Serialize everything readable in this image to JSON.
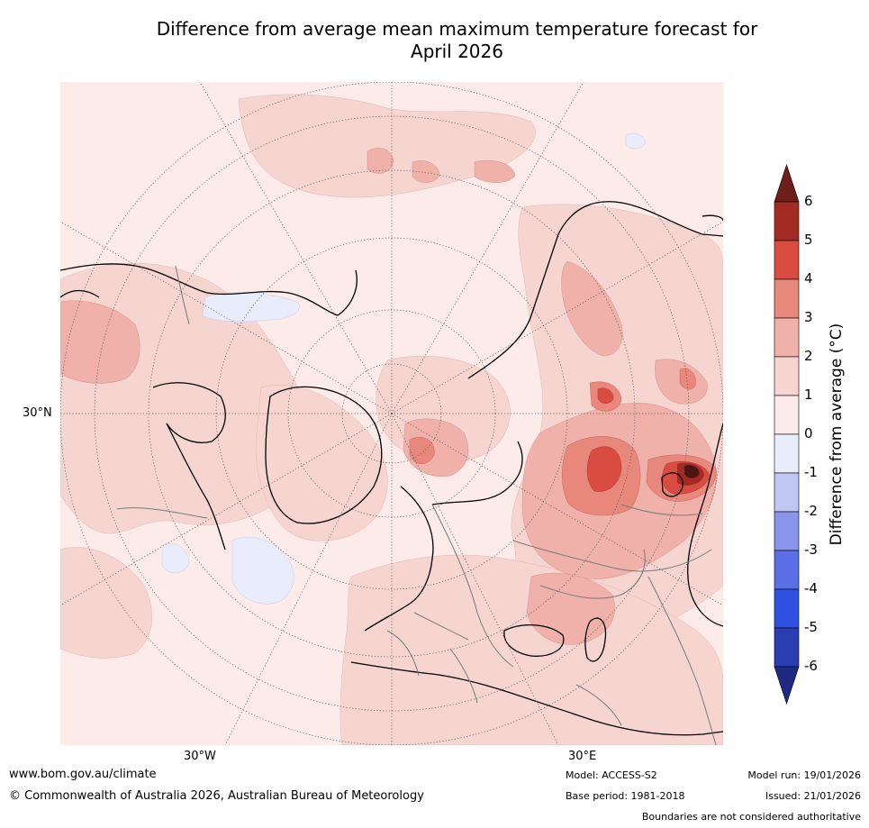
{
  "title": {
    "line1": "Difference from average mean maximum temperature forecast for",
    "line2": "April 2026"
  },
  "axis_labels": {
    "lat_30n": "30°N",
    "lon_30w": "30°W",
    "lon_30e": "30°E"
  },
  "colorbar": {
    "label": "Difference from average (°C)",
    "ticks": [
      "6",
      "5",
      "4",
      "3",
      "2",
      "1",
      "0",
      "-1",
      "-2",
      "-3",
      "-4",
      "-5",
      "-6"
    ],
    "bin_colors": [
      "#a42b24",
      "#d84c42",
      "#e8877c",
      "#efb1aa",
      "#f6d5d1",
      "#fcebe8",
      "#e9ecfb",
      "#c0c7f1",
      "#8895ea",
      "#5a6ee6",
      "#3050e2",
      "#2a3db2"
    ],
    "top_extend_color": "#6e1f1a",
    "bottom_extend_color": "#1f2a82"
  },
  "footer": {
    "website": "www.bom.gov.au/climate",
    "copyright": "© Commonwealth of Australia 2026, Australian Bureau of Meteorology",
    "model": "Model: ACCESS-S2",
    "base_period": "Base period: 1981-2018",
    "model_run": "Model run: 19/01/2026",
    "issued": "Issued: 21/01/2026",
    "disclaimer": "Boundaries are not considered authoritative"
  },
  "legend_anomaly_colors": {
    "background": "#fcebe8",
    "light_warm": "#f6d5d1",
    "mid_warm": "#efb1aa",
    "warm": "#e8877c",
    "hot": "#d84c42",
    "very_hot": "#a42b24",
    "extreme_hot": "#6e1f1a",
    "light_cool": "#e9ecfb",
    "cool": "#c0c7f1"
  }
}
